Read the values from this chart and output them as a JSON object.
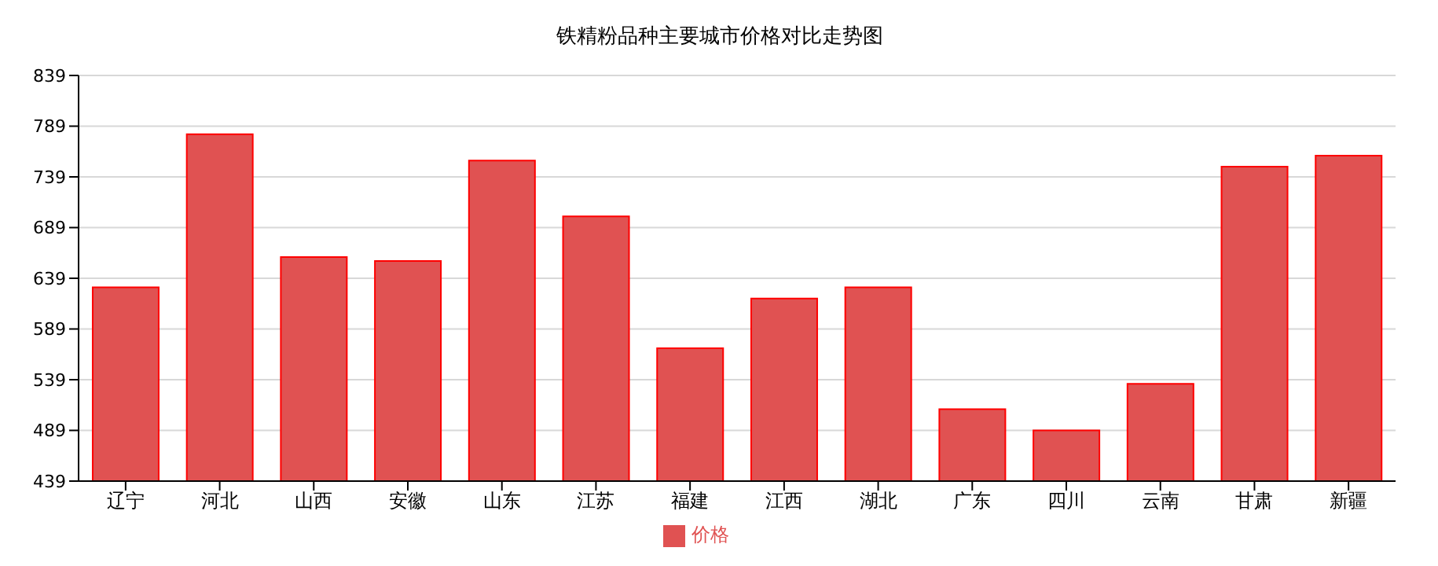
{
  "chart_data": {
    "type": "bar",
    "title": "铁精粉品种主要城市价格对比走势图",
    "categories": [
      "辽宁",
      "河北",
      "山西",
      "安徽",
      "山东",
      "江苏",
      "福建",
      "江西",
      "湖北",
      "广东",
      "四川",
      "云南",
      "甘肃",
      "新疆"
    ],
    "series": [
      {
        "name": "价格",
        "color": "#e05252",
        "values": [
          630,
          781,
          660,
          656,
          755,
          700,
          570,
          619,
          630,
          510,
          489,
          535,
          749,
          760
        ]
      }
    ],
    "ylim": [
      439,
      839
    ],
    "yticks": [
      439,
      489,
      539,
      589,
      639,
      689,
      739,
      789,
      839
    ],
    "grid": "y",
    "legend": "bottom"
  }
}
